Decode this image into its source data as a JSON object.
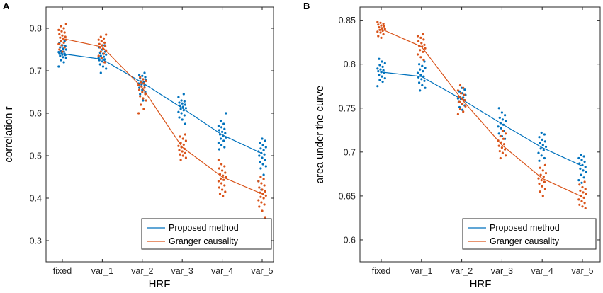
{
  "figure": {
    "colors": {
      "proposed": "#0072BD",
      "granger": "#D95319",
      "axis": "#262626"
    }
  },
  "chart_data": [
    {
      "panel_label": "A",
      "type": "scatter",
      "categories": [
        "fixed",
        "var_1",
        "var_2",
        "var_3",
        "var_4",
        "var_5"
      ],
      "xlabel": "HRF",
      "ylabel": "correlation r",
      "ylim": [
        0.25,
        0.85
      ],
      "yticks": [
        0.3,
        0.4,
        0.5,
        0.6,
        0.7,
        0.8
      ],
      "ytick_labels": [
        "0.3",
        "0.4",
        "0.5",
        "0.6",
        "0.7",
        "0.8"
      ],
      "legend_position": "bottom-right",
      "series": [
        {
          "name": "Proposed method",
          "color": "#0072BD",
          "means": [
            0.74,
            0.727,
            0.672,
            0.612,
            0.549,
            0.505
          ],
          "points": [
            [
              0.71,
              0.72,
              0.725,
              0.73,
              0.732,
              0.735,
              0.737,
              0.738,
              0.74,
              0.74,
              0.742,
              0.744,
              0.745,
              0.747,
              0.75,
              0.752,
              0.755,
              0.758,
              0.76,
              0.765,
              0.77
            ],
            [
              0.695,
              0.705,
              0.71,
              0.715,
              0.72,
              0.722,
              0.725,
              0.727,
              0.73,
              0.73,
              0.733,
              0.735,
              0.738,
              0.74,
              0.742,
              0.745,
              0.75,
              0.755,
              0.76
            ],
            [
              0.63,
              0.645,
              0.65,
              0.655,
              0.66,
              0.665,
              0.668,
              0.67,
              0.673,
              0.675,
              0.678,
              0.68,
              0.682,
              0.685,
              0.688,
              0.69,
              0.695
            ],
            [
              0.575,
              0.585,
              0.59,
              0.595,
              0.6,
              0.603,
              0.607,
              0.61,
              0.612,
              0.615,
              0.618,
              0.62,
              0.623,
              0.625,
              0.628,
              0.63,
              0.638,
              0.645
            ],
            [
              0.515,
              0.52,
              0.525,
              0.53,
              0.535,
              0.54,
              0.543,
              0.547,
              0.55,
              0.553,
              0.556,
              0.56,
              0.563,
              0.567,
              0.57,
              0.575,
              0.582,
              0.6
            ],
            [
              0.42,
              0.44,
              0.455,
              0.47,
              0.475,
              0.48,
              0.485,
              0.49,
              0.495,
              0.5,
              0.503,
              0.506,
              0.51,
              0.513,
              0.517,
              0.52,
              0.525,
              0.53,
              0.535,
              0.54
            ]
          ]
        },
        {
          "name": "Granger causality",
          "color": "#D95319",
          "means": [
            0.776,
            0.756,
            0.66,
            0.52,
            0.45,
            0.41
          ],
          "points": [
            [
              0.745,
              0.75,
              0.755,
              0.76,
              0.763,
              0.766,
              0.77,
              0.773,
              0.776,
              0.778,
              0.78,
              0.783,
              0.786,
              0.79,
              0.793,
              0.796,
              0.8,
              0.805,
              0.81
            ],
            [
              0.72,
              0.73,
              0.735,
              0.74,
              0.745,
              0.748,
              0.752,
              0.755,
              0.758,
              0.76,
              0.763,
              0.766,
              0.77,
              0.773,
              0.776,
              0.78,
              0.785
            ],
            [
              0.6,
              0.61,
              0.62,
              0.63,
              0.635,
              0.64,
              0.645,
              0.65,
              0.655,
              0.66,
              0.663,
              0.666,
              0.67,
              0.673,
              0.676,
              0.68,
              0.685
            ],
            [
              0.49,
              0.495,
              0.5,
              0.503,
              0.506,
              0.51,
              0.513,
              0.516,
              0.52,
              0.523,
              0.526,
              0.53,
              0.535,
              0.54,
              0.545,
              0.55
            ],
            [
              0.405,
              0.41,
              0.415,
              0.42,
              0.425,
              0.43,
              0.435,
              0.44,
              0.443,
              0.446,
              0.45,
              0.453,
              0.456,
              0.46,
              0.465,
              0.47,
              0.475,
              0.48,
              0.49
            ],
            [
              0.355,
              0.37,
              0.38,
              0.385,
              0.39,
              0.395,
              0.4,
              0.403,
              0.406,
              0.41,
              0.413,
              0.416,
              0.42,
              0.425,
              0.43,
              0.435,
              0.44,
              0.445,
              0.45
            ]
          ]
        }
      ]
    },
    {
      "panel_label": "B",
      "type": "scatter",
      "categories": [
        "fixed",
        "var_1",
        "var_2",
        "var_3",
        "var_4",
        "var_5"
      ],
      "xlabel": "HRF",
      "ylabel": "area under the curve",
      "ylim": [
        0.575,
        0.865
      ],
      "yticks": [
        0.6,
        0.65,
        0.7,
        0.75,
        0.8,
        0.85
      ],
      "ytick_labels": [
        "0.6",
        "0.65",
        "0.7",
        "0.75",
        "0.8",
        "0.85"
      ],
      "legend_position": "bottom-right",
      "series": [
        {
          "name": "Proposed method",
          "color": "#0072BD",
          "means": [
            0.791,
            0.786,
            0.76,
            0.732,
            0.705,
            0.684
          ],
          "points": [
            [
              0.775,
              0.78,
              0.782,
              0.784,
              0.786,
              0.788,
              0.79,
              0.791,
              0.792,
              0.793,
              0.794,
              0.795,
              0.797,
              0.799,
              0.801,
              0.803,
              0.806
            ],
            [
              0.77,
              0.773,
              0.776,
              0.779,
              0.781,
              0.783,
              0.785,
              0.786,
              0.788,
              0.79,
              0.792,
              0.794,
              0.796,
              0.798,
              0.8,
              0.803
            ],
            [
              0.748,
              0.751,
              0.753,
              0.755,
              0.757,
              0.759,
              0.76,
              0.761,
              0.762,
              0.763,
              0.765,
              0.767,
              0.769,
              0.771,
              0.773
            ],
            [
              0.715,
              0.718,
              0.721,
              0.724,
              0.727,
              0.729,
              0.731,
              0.733,
              0.735,
              0.737,
              0.739,
              0.742,
              0.745,
              0.75
            ],
            [
              0.69,
              0.693,
              0.696,
              0.699,
              0.702,
              0.704,
              0.706,
              0.708,
              0.71,
              0.712,
              0.714,
              0.717,
              0.72,
              0.722
            ],
            [
              0.665,
              0.668,
              0.671,
              0.674,
              0.677,
              0.679,
              0.681,
              0.683,
              0.685,
              0.687,
              0.689,
              0.691,
              0.693,
              0.695,
              0.697
            ]
          ]
        },
        {
          "name": "Granger causality",
          "color": "#D95319",
          "means": [
            0.84,
            0.82,
            0.76,
            0.708,
            0.67,
            0.649
          ],
          "points": [
            [
              0.83,
              0.832,
              0.834,
              0.836,
              0.837,
              0.838,
              0.839,
              0.84,
              0.841,
              0.842,
              0.843,
              0.844,
              0.845,
              0.846,
              0.847,
              0.848
            ],
            [
              0.805,
              0.808,
              0.811,
              0.814,
              0.816,
              0.818,
              0.82,
              0.821,
              0.822,
              0.824,
              0.826,
              0.828,
              0.83,
              0.832,
              0.834
            ],
            [
              0.743,
              0.746,
              0.749,
              0.752,
              0.755,
              0.757,
              0.759,
              0.761,
              0.763,
              0.765,
              0.767,
              0.77,
              0.773,
              0.776
            ],
            [
              0.693,
              0.696,
              0.699,
              0.701,
              0.703,
              0.705,
              0.707,
              0.709,
              0.711,
              0.713,
              0.715,
              0.718,
              0.721,
              0.724
            ],
            [
              0.65,
              0.655,
              0.658,
              0.661,
              0.664,
              0.666,
              0.668,
              0.67,
              0.672,
              0.674,
              0.676,
              0.679,
              0.682,
              0.685
            ],
            [
              0.636,
              0.638,
              0.64,
              0.642,
              0.644,
              0.646,
              0.648,
              0.65,
              0.652,
              0.654,
              0.656,
              0.658,
              0.66,
              0.663,
              0.666
            ]
          ]
        }
      ]
    }
  ]
}
